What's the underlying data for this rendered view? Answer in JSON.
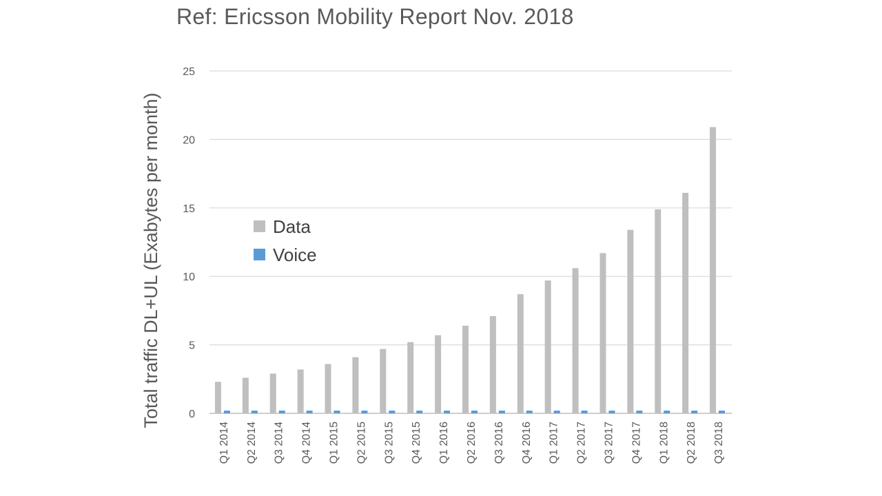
{
  "chart_data": {
    "type": "bar",
    "title": "Ref: Ericsson Mobility Report Nov. 2018",
    "xlabel": "",
    "ylabel": "Total traffic DL+UL (Exabytes per month)",
    "ylim": [
      0,
      25
    ],
    "yticks": [
      0,
      5,
      10,
      15,
      20,
      25
    ],
    "grid": true,
    "legend_position": "left",
    "categories": [
      "Q1 2014",
      "Q2 2014",
      "Q3 2014",
      "Q4 2014",
      "Q1 2015",
      "Q2 2015",
      "Q3 2015",
      "Q4 2015",
      "Q1 2016",
      "Q2 2016",
      "Q3 2016",
      "Q4 2016",
      "Q1 2017",
      "Q2 2017",
      "Q3 2017",
      "Q4 2017",
      "Q1 2018",
      "Q2 2018",
      "Q3 2018"
    ],
    "series": [
      {
        "name": "Data",
        "color": "#bfbfbf",
        "values": [
          2.3,
          2.6,
          2.9,
          3.2,
          3.6,
          4.1,
          4.7,
          5.2,
          5.7,
          6.4,
          7.1,
          8.7,
          9.7,
          10.6,
          11.7,
          13.4,
          14.9,
          16.1,
          20.9
        ]
      },
      {
        "name": "Voice",
        "color": "#5b9bd5",
        "values": [
          0.2,
          0.2,
          0.2,
          0.2,
          0.2,
          0.2,
          0.2,
          0.2,
          0.2,
          0.2,
          0.2,
          0.2,
          0.2,
          0.2,
          0.2,
          0.2,
          0.2,
          0.2,
          0.2
        ]
      }
    ],
    "gridline_color": "#d9d9d9",
    "axis_color": "#bfbfbf"
  }
}
